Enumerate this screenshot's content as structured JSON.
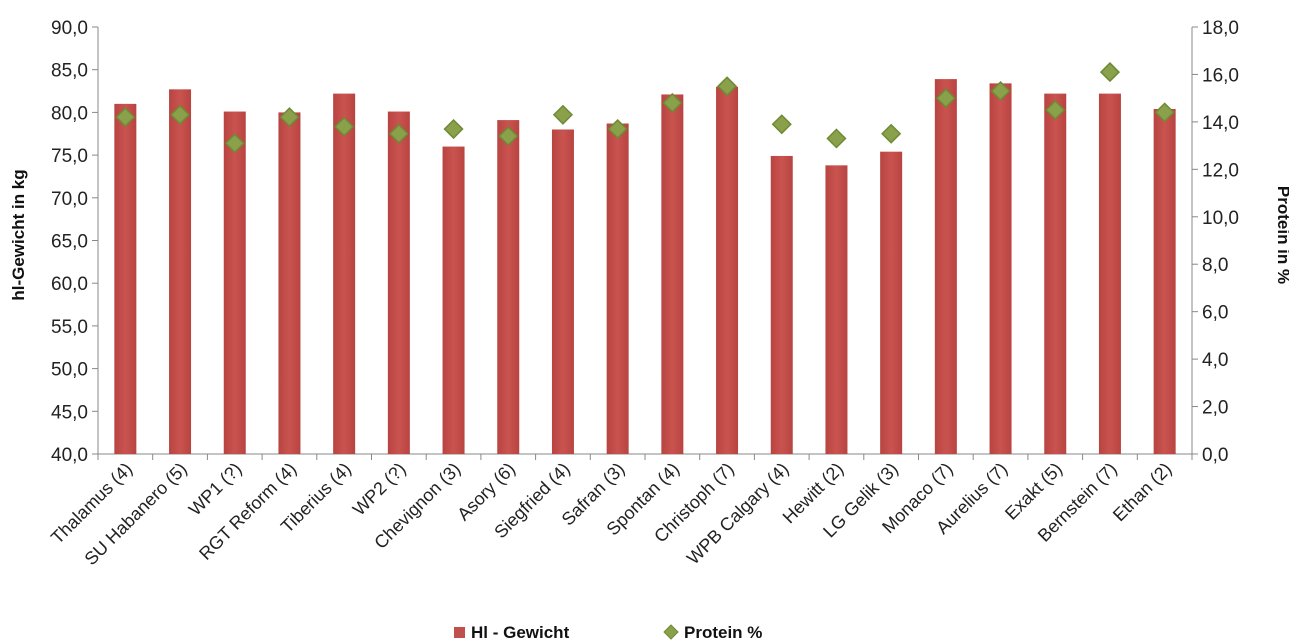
{
  "chart_data": {
    "type": "bar",
    "categories": [
      "Thalamus (4)",
      "SU Habanero (5)",
      "WP1 (?)",
      "RGT Reform (4)",
      "Tiberius (4)",
      "WP2 (?)",
      "Chevignon (3)",
      "Asory (6)",
      "Siegfried (4)",
      "Safran (3)",
      "Spontan (4)",
      "Christoph (7)",
      "WPB Calgary (4)",
      "Hewitt (2)",
      "LG Gelik (3)",
      "Monaco (7)",
      "Aurelius (7)",
      "Exakt (5)",
      "Bernstein (7)",
      "Ethan (2)"
    ],
    "series": [
      {
        "name": "Hl - Gewicht",
        "type": "bar",
        "axis": "left",
        "color": "#c0504d",
        "values": [
          81.0,
          82.7,
          80.1,
          80.0,
          82.2,
          80.1,
          76.0,
          79.1,
          78.0,
          78.7,
          82.1,
          83.0,
          74.9,
          73.8,
          75.4,
          83.9,
          83.4,
          82.2,
          82.2,
          80.4
        ]
      },
      {
        "name": "Protein %",
        "type": "scatter",
        "marker": "diamond",
        "axis": "right",
        "color": "#8aa04a",
        "values": [
          14.2,
          14.3,
          13.1,
          14.2,
          13.8,
          13.5,
          13.7,
          13.4,
          14.3,
          13.7,
          14.8,
          15.5,
          13.9,
          13.3,
          13.5,
          15.0,
          15.3,
          14.5,
          16.1,
          14.4
        ]
      }
    ],
    "ylabel": "hl-Gewicht in kg",
    "y2label": "Protein in %",
    "ylim": [
      40,
      90
    ],
    "y2lim": [
      0,
      18
    ],
    "yticks": [
      "40,0",
      "45,0",
      "50,0",
      "55,0",
      "60,0",
      "65,0",
      "70,0",
      "75,0",
      "80,0",
      "85,0",
      "90,0"
    ],
    "y2ticks": [
      "0,0",
      "2,0",
      "4,0",
      "6,0",
      "8,0",
      "10,0",
      "12,0",
      "14,0",
      "16,0",
      "18,0"
    ],
    "grid": false,
    "legend": "bottom"
  }
}
